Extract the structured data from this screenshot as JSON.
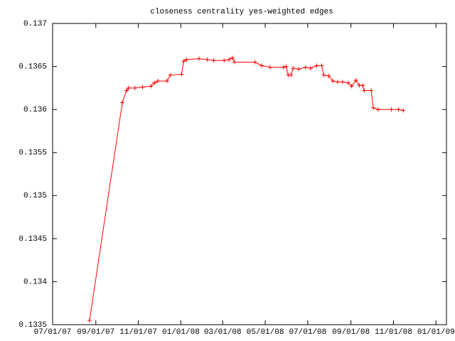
{
  "chart_data": {
    "type": "line",
    "title": "closeness centrality yes-weighted edges",
    "x": [
      "2007-08-23",
      "2007-10-09",
      "2007-10-15",
      "2007-10-18",
      "2007-10-27",
      "2007-11-07",
      "2007-11-19",
      "2007-11-24",
      "2007-11-29",
      "2007-12-12",
      "2007-12-17",
      "2008-01-02",
      "2008-01-05",
      "2008-01-09",
      "2008-01-27",
      "2008-02-08",
      "2008-02-17",
      "2008-03-03",
      "2008-03-10",
      "2008-03-15",
      "2008-03-18",
      "2008-04-16",
      "2008-04-26",
      "2008-05-08",
      "2008-05-27",
      "2008-05-31",
      "2008-06-03",
      "2008-06-07",
      "2008-06-10",
      "2008-06-18",
      "2008-06-28",
      "2008-07-05",
      "2008-07-14",
      "2008-07-21",
      "2008-07-24",
      "2008-07-31",
      "2008-08-06",
      "2008-08-13",
      "2008-08-20",
      "2008-08-28",
      "2008-09-02",
      "2008-09-08",
      "2008-09-13",
      "2008-09-18",
      "2008-09-20",
      "2008-09-30",
      "2008-10-03",
      "2008-10-10",
      "2008-10-29",
      "2008-11-08",
      "2008-11-15"
    ],
    "series": [
      {
        "color": "#ff0000",
        "values": [
          0.13355,
          0.13608,
          0.13622,
          0.13625,
          0.13625,
          0.13626,
          0.13627,
          0.13631,
          0.13633,
          0.13633,
          0.1364,
          0.13641,
          0.13656,
          0.13658,
          0.13659,
          0.13658,
          0.13657,
          0.13657,
          0.13658,
          0.1366,
          0.13655,
          0.13655,
          0.13651,
          0.13649,
          0.13649,
          0.1365,
          0.1364,
          0.1364,
          0.13648,
          0.13647,
          0.13649,
          0.13648,
          0.13651,
          0.13651,
          0.1364,
          0.13639,
          0.13633,
          0.13632,
          0.13632,
          0.13631,
          0.13627,
          0.13634,
          0.13628,
          0.13628,
          0.13622,
          0.13622,
          0.13602,
          0.136,
          0.136,
          0.136,
          0.13599
        ]
      }
    ],
    "xlim": [
      "2007-07-01",
      "2009-01-16"
    ],
    "xticks": [
      {
        "value": "2007-07-01",
        "label": "07/01/07"
      },
      {
        "value": "2007-09-01",
        "label": "09/01/07"
      },
      {
        "value": "2007-11-01",
        "label": "11/01/07"
      },
      {
        "value": "2008-01-01",
        "label": "01/01/08"
      },
      {
        "value": "2008-03-01",
        "label": "03/01/08"
      },
      {
        "value": "2008-05-01",
        "label": "05/01/08"
      },
      {
        "value": "2008-07-01",
        "label": "07/01/08"
      },
      {
        "value": "2008-09-01",
        "label": "09/01/08"
      },
      {
        "value": "2008-11-01",
        "label": "11/01/08"
      },
      {
        "value": "2009-01-01",
        "label": "01/01/09"
      }
    ],
    "ylim": [
      0.1335,
      0.137
    ],
    "yticks": [
      0.1335,
      0.134,
      0.1345,
      0.135,
      0.1355,
      0.136,
      0.1365,
      0.137
    ],
    "grid": false
  }
}
